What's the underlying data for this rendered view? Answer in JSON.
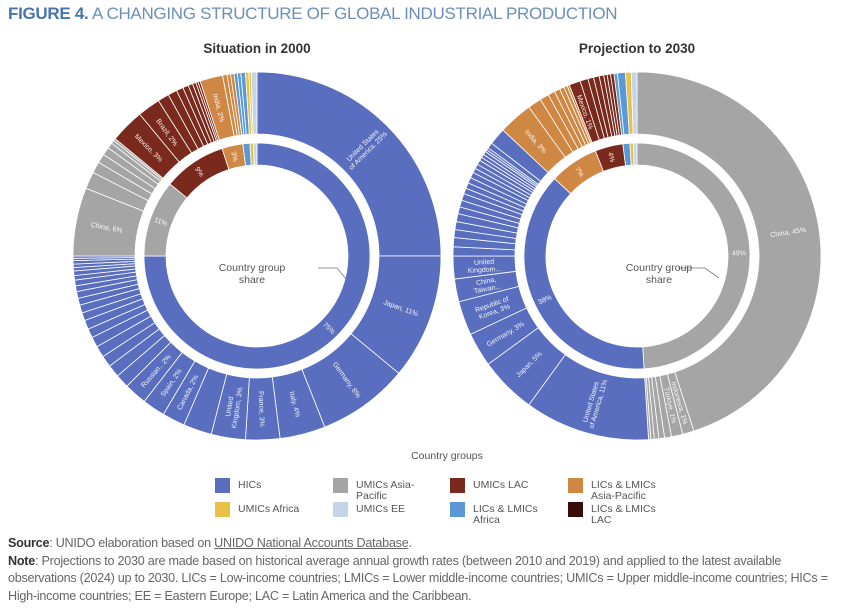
{
  "figure": {
    "number": "FIGURE 4.",
    "title": "A CHANGING STRUCTURE OF GLOBAL INDUSTRIAL PRODUCTION"
  },
  "center_annotation": "Country group share",
  "legend": {
    "title": "Country groups",
    "items": [
      {
        "key": "HIC",
        "label": "HICs",
        "color": "#5a6ebf"
      },
      {
        "key": "UAP",
        "label": "UMICs Asia-Pacific",
        "color": "#a5a5a5"
      },
      {
        "key": "ULAC",
        "label": "UMICs LAC",
        "color": "#7a2a1d"
      },
      {
        "key": "LAP",
        "label": "LICs & LMICs Asia-Pacific",
        "color": "#cf8744"
      },
      {
        "key": "UAF",
        "label": "UMICs Africa",
        "color": "#e9c14a"
      },
      {
        "key": "UEE",
        "label": "UMICs EE",
        "color": "#c4d5e8"
      },
      {
        "key": "LAF",
        "label": "LICs & LMICs Africa",
        "color": "#5b99d6"
      },
      {
        "key": "LLAC",
        "label": "LICs & LMICs LAC",
        "color": "#3a0b0b"
      }
    ]
  },
  "chart_data": [
    {
      "type": "sunburst",
      "title": "Situation in 2000",
      "unit": "% of global industrial production",
      "inner": [
        {
          "group": "HIC",
          "value": 75,
          "label": "75%"
        },
        {
          "group": "UAP",
          "value": 11,
          "label": "11%"
        },
        {
          "group": "ULAC",
          "value": 9,
          "label": "9%"
        },
        {
          "group": "LAP",
          "value": 3,
          "label": "3%"
        },
        {
          "group": "LAF",
          "value": 1,
          "label": ""
        },
        {
          "group": "UAF",
          "value": 0.5,
          "label": ""
        },
        {
          "group": "UEE",
          "value": 0.5,
          "label": ""
        }
      ],
      "outer": [
        {
          "group": "HIC",
          "value": 25,
          "label": "United States of America, 25%"
        },
        {
          "group": "HIC",
          "value": 11,
          "label": "Japan, 11%"
        },
        {
          "group": "HIC",
          "value": 8,
          "label": "Germany, 8%"
        },
        {
          "group": "HIC",
          "value": 4,
          "label": "Italy, 4%"
        },
        {
          "group": "HIC",
          "value": 3,
          "label": "France, 3%"
        },
        {
          "group": "HIC",
          "value": 3,
          "label": "United Kingdom, 3%"
        },
        {
          "group": "HIC",
          "value": 2.5,
          "label": ""
        },
        {
          "group": "HIC",
          "value": 2,
          "label": "Canada, 2%"
        },
        {
          "group": "HIC",
          "value": 2,
          "label": "Spain, 2%"
        },
        {
          "group": "HIC",
          "value": 2,
          "label": "Russian.. 2%"
        },
        {
          "group": "HIC",
          "value": 1.2,
          "label": ""
        },
        {
          "group": "HIC",
          "value": 1.1,
          "label": ""
        },
        {
          "group": "HIC",
          "value": 1,
          "label": ""
        },
        {
          "group": "HIC",
          "value": 1,
          "label": ""
        },
        {
          "group": "HIC",
          "value": 0.9,
          "label": ""
        },
        {
          "group": "HIC",
          "value": 0.8,
          "label": ""
        },
        {
          "group": "HIC",
          "value": 0.8,
          "label": ""
        },
        {
          "group": "HIC",
          "value": 0.7,
          "label": ""
        },
        {
          "group": "HIC",
          "value": 0.7,
          "label": ""
        },
        {
          "group": "HIC",
          "value": 0.6,
          "label": ""
        },
        {
          "group": "HIC",
          "value": 0.6,
          "label": ""
        },
        {
          "group": "HIC",
          "value": 0.5,
          "label": ""
        },
        {
          "group": "HIC",
          "value": 0.5,
          "label": ""
        },
        {
          "group": "HIC",
          "value": 0.4,
          "label": ""
        },
        {
          "group": "HIC",
          "value": 0.4,
          "label": ""
        },
        {
          "group": "HIC",
          "value": 0.3,
          "label": ""
        },
        {
          "group": "HIC",
          "value": 0.3,
          "label": ""
        },
        {
          "group": "HIC",
          "value": 0.3,
          "label": ""
        },
        {
          "group": "HIC",
          "value": 0.2,
          "label": ""
        },
        {
          "group": "HIC",
          "value": 0.2,
          "label": ""
        },
        {
          "group": "UAP",
          "value": 6,
          "label": "China, 6%"
        },
        {
          "group": "UAP",
          "value": 1.5,
          "label": ""
        },
        {
          "group": "UAP",
          "value": 1,
          "label": ""
        },
        {
          "group": "UAP",
          "value": 0.8,
          "label": ""
        },
        {
          "group": "UAP",
          "value": 0.7,
          "label": ""
        },
        {
          "group": "UAP",
          "value": 0.5,
          "label": ""
        },
        {
          "group": "UAP",
          "value": 0.3,
          "label": ""
        },
        {
          "group": "UAP",
          "value": 0.2,
          "label": ""
        },
        {
          "group": "ULAC",
          "value": 3,
          "label": "Mexico, 3%"
        },
        {
          "group": "ULAC",
          "value": 2,
          "label": "Brazil, 2%"
        },
        {
          "group": "ULAC",
          "value": 1,
          "label": ""
        },
        {
          "group": "ULAC",
          "value": 0.8,
          "label": ""
        },
        {
          "group": "ULAC",
          "value": 0.6,
          "label": ""
        },
        {
          "group": "ULAC",
          "value": 0.5,
          "label": ""
        },
        {
          "group": "ULAC",
          "value": 0.4,
          "label": ""
        },
        {
          "group": "ULAC",
          "value": 0.3,
          "label": ""
        },
        {
          "group": "ULAC",
          "value": 0.2,
          "label": ""
        },
        {
          "group": "ULAC",
          "value": 0.2,
          "label": ""
        },
        {
          "group": "LAP",
          "value": 2,
          "label": "India, 2%"
        },
        {
          "group": "LAP",
          "value": 0.4,
          "label": ""
        },
        {
          "group": "LAP",
          "value": 0.3,
          "label": ""
        },
        {
          "group": "LAP",
          "value": 0.3,
          "label": ""
        },
        {
          "group": "LAF",
          "value": 0.3,
          "label": ""
        },
        {
          "group": "LAF",
          "value": 0.3,
          "label": ""
        },
        {
          "group": "LAF",
          "value": 0.4,
          "label": ""
        },
        {
          "group": "UAF",
          "value": 0.3,
          "label": ""
        },
        {
          "group": "UAF",
          "value": 0.2,
          "label": ""
        },
        {
          "group": "UEE",
          "value": 0.5,
          "label": ""
        }
      ]
    },
    {
      "type": "sunburst",
      "title": "Projection to 2030",
      "unit": "% of global industrial production",
      "inner": [
        {
          "group": "UAP",
          "value": 49,
          "label": "49%"
        },
        {
          "group": "HIC",
          "value": 38,
          "label": "38%"
        },
        {
          "group": "LAP",
          "value": 7,
          "label": "7%"
        },
        {
          "group": "ULAC",
          "value": 4,
          "label": "4%"
        },
        {
          "group": "LAF",
          "value": 1,
          "label": ""
        },
        {
          "group": "UAF",
          "value": 0.5,
          "label": ""
        },
        {
          "group": "UEE",
          "value": 0.5,
          "label": ""
        }
      ],
      "outer": [
        {
          "group": "UAP",
          "value": 45,
          "label": "China, 45%"
        },
        {
          "group": "UAP",
          "value": 1,
          "label": "Indonesia, 1%"
        },
        {
          "group": "UAP",
          "value": 1,
          "label": "Türkiye, 1%"
        },
        {
          "group": "UAP",
          "value": 0.6,
          "label": ""
        },
        {
          "group": "UAP",
          "value": 0.5,
          "label": ""
        },
        {
          "group": "UAP",
          "value": 0.4,
          "label": ""
        },
        {
          "group": "UAP",
          "value": 0.3,
          "label": ""
        },
        {
          "group": "UAP",
          "value": 0.2,
          "label": ""
        },
        {
          "group": "HIC",
          "value": 11,
          "label": "United States of America, 11%"
        },
        {
          "group": "HIC",
          "value": 5,
          "label": "Japan, 5%"
        },
        {
          "group": "HIC",
          "value": 3,
          "label": "Germany, 3%"
        },
        {
          "group": "HIC",
          "value": 3,
          "label": "Republic of Korea, 3%"
        },
        {
          "group": "HIC",
          "value": 2,
          "label": "China, Taiwan..."
        },
        {
          "group": "HIC",
          "value": 2,
          "label": "United Kingdom..."
        },
        {
          "group": "HIC",
          "value": 0.8,
          "label": ""
        },
        {
          "group": "HIC",
          "value": 0.8,
          "label": ""
        },
        {
          "group": "HIC",
          "value": 0.7,
          "label": ""
        },
        {
          "group": "HIC",
          "value": 0.7,
          "label": ""
        },
        {
          "group": "HIC",
          "value": 0.7,
          "label": ""
        },
        {
          "group": "HIC",
          "value": 0.6,
          "label": ""
        },
        {
          "group": "HIC",
          "value": 0.6,
          "label": ""
        },
        {
          "group": "HIC",
          "value": 0.6,
          "label": ""
        },
        {
          "group": "HIC",
          "value": 0.5,
          "label": ""
        },
        {
          "group": "HIC",
          "value": 0.5,
          "label": ""
        },
        {
          "group": "HIC",
          "value": 0.5,
          "label": ""
        },
        {
          "group": "HIC",
          "value": 0.5,
          "label": ""
        },
        {
          "group": "HIC",
          "value": 0.4,
          "label": ""
        },
        {
          "group": "HIC",
          "value": 0.4,
          "label": ""
        },
        {
          "group": "HIC",
          "value": 0.4,
          "label": ""
        },
        {
          "group": "HIC",
          "value": 0.3,
          "label": ""
        },
        {
          "group": "HIC",
          "value": 0.3,
          "label": ""
        },
        {
          "group": "HIC",
          "value": 0.3,
          "label": ""
        },
        {
          "group": "HIC",
          "value": 0.2,
          "label": ""
        },
        {
          "group": "HIC",
          "value": 0.2,
          "label": ""
        },
        {
          "group": "HIC",
          "value": 0.5,
          "label": ""
        },
        {
          "group": "HIC",
          "value": 1.5,
          "label": ""
        },
        {
          "group": "LAP",
          "value": 3,
          "label": "India, 3%"
        },
        {
          "group": "LAP",
          "value": 1.2,
          "label": ""
        },
        {
          "group": "LAP",
          "value": 0.8,
          "label": ""
        },
        {
          "group": "LAP",
          "value": 0.6,
          "label": ""
        },
        {
          "group": "LAP",
          "value": 0.5,
          "label": ""
        },
        {
          "group": "LAP",
          "value": 0.4,
          "label": ""
        },
        {
          "group": "LAP",
          "value": 0.3,
          "label": ""
        },
        {
          "group": "LAP",
          "value": 0.2,
          "label": ""
        },
        {
          "group": "ULAC",
          "value": 1,
          "label": "Mexico, 1%"
        },
        {
          "group": "ULAC",
          "value": 0.7,
          "label": ""
        },
        {
          "group": "ULAC",
          "value": 0.5,
          "label": ""
        },
        {
          "group": "ULAC",
          "value": 0.5,
          "label": ""
        },
        {
          "group": "ULAC",
          "value": 0.4,
          "label": ""
        },
        {
          "group": "ULAC",
          "value": 0.3,
          "label": ""
        },
        {
          "group": "ULAC",
          "value": 0.3,
          "label": ""
        },
        {
          "group": "ULAC",
          "value": 0.3,
          "label": ""
        },
        {
          "group": "LAF",
          "value": 0.3,
          "label": ""
        },
        {
          "group": "LAF",
          "value": 0.7,
          "label": ""
        },
        {
          "group": "UAF",
          "value": 0.5,
          "label": ""
        },
        {
          "group": "UEE",
          "value": 0.5,
          "label": ""
        }
      ]
    }
  ],
  "footer": {
    "source_label": "Source",
    "source_text": ": UNIDO elaboration based on ",
    "source_link": "UNIDO National Accounts Database",
    "source_end": ".",
    "note_label": "Note",
    "note_text": ": Projections to 2030 are made based on historical average annual growth rates (between 2010 and 2019) and applied to the latest available observations (2024) up to 2030. LICs = Low-income countries; LMICs = Lower middle-income countries; UMICs = Upper middle-income countries; HICs = High-income countries; EE = Eastern Europe; LAC = Latin America and the Caribbean."
  }
}
